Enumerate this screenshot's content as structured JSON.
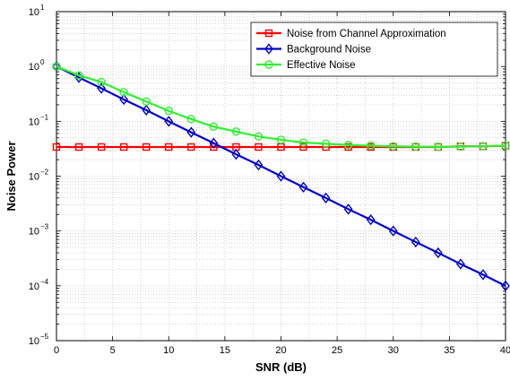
{
  "chart_data": {
    "type": "line",
    "title": "",
    "xlabel": "SNR (dB)",
    "ylabel": "Noise Power",
    "xscale": "linear",
    "yscale": "log",
    "xlim": [
      0,
      40
    ],
    "ylim": [
      1e-05,
      10
    ],
    "grid": true,
    "legend_position": "top-right",
    "x_ticks": [
      0,
      5,
      10,
      15,
      20,
      25,
      30,
      35,
      40
    ],
    "x_tick_labels": [
      "0",
      "5",
      "10",
      "15",
      "20",
      "25",
      "30",
      "35",
      "40"
    ],
    "y_ticks": [
      1e-05,
      0.0001,
      0.001,
      0.01,
      0.1,
      1,
      10
    ],
    "y_tick_labels": [
      {
        "base": "10",
        "exp": "−5"
      },
      {
        "base": "10",
        "exp": "−4"
      },
      {
        "base": "10",
        "exp": "−3"
      },
      {
        "base": "10",
        "exp": "−2"
      },
      {
        "base": "10",
        "exp": "−1"
      },
      {
        "base": "10",
        "exp": "0"
      },
      {
        "base": "10",
        "exp": "1"
      }
    ],
    "x": [
      0,
      2,
      4,
      6,
      8,
      10,
      12,
      14,
      16,
      18,
      20,
      22,
      24,
      26,
      28,
      30,
      32,
      34,
      36,
      38,
      40
    ],
    "series": [
      {
        "name": "Noise from Channel Approximation",
        "color": "#ff0000",
        "marker": "square",
        "values": [
          0.034,
          0.034,
          0.034,
          0.034,
          0.034,
          0.034,
          0.034,
          0.034,
          0.034,
          0.034,
          0.034,
          0.034,
          0.034,
          0.034,
          0.034,
          0.034,
          0.034,
          0.034,
          0.035,
          0.035,
          0.036
        ]
      },
      {
        "name": "Background Noise",
        "color": "#0000cc",
        "marker": "diamond",
        "values": [
          1,
          0.63,
          0.4,
          0.25,
          0.16,
          0.1,
          0.063,
          0.04,
          0.025,
          0.016,
          0.01,
          0.0063,
          0.004,
          0.0025,
          0.0016,
          0.001,
          0.00063,
          0.0004,
          0.00025,
          0.00016,
          0.0001
        ]
      },
      {
        "name": "Effective Noise",
        "color": "#33ee33",
        "marker": "circle",
        "values": [
          1,
          0.69,
          0.52,
          0.34,
          0.23,
          0.155,
          0.11,
          0.08,
          0.065,
          0.053,
          0.046,
          0.041,
          0.039,
          0.037,
          0.036,
          0.035,
          0.0345,
          0.0343,
          0.0345,
          0.0352,
          0.036
        ]
      }
    ]
  }
}
